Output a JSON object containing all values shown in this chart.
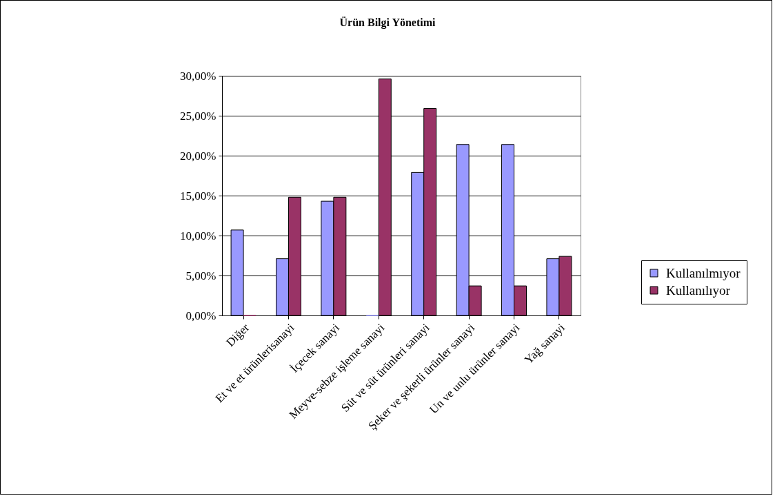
{
  "chart_data": {
    "type": "bar",
    "title": "Ürün Bilgi Yönetimi",
    "categories": [
      "Diğer",
      "Et ve et ürünlerisanayi",
      "İçecek sanayi",
      "Meyve-sebze işleme sanayi",
      "Süt ve  süt ürünleri sanayi",
      "Şeker ve şekerli ürünler sanayi",
      "Un ve unlu ürünler sanayi",
      "Yağ sanayi"
    ],
    "series": [
      {
        "name": "Kullanılmıyor",
        "color": "#9999ff",
        "values": [
          10.7,
          7.1,
          14.3,
          0,
          17.9,
          21.4,
          21.4,
          7.1
        ]
      },
      {
        "name": "Kullanılıyor",
        "color": "#993366",
        "values": [
          0,
          14.8,
          14.8,
          29.6,
          25.9,
          3.7,
          3.7,
          7.4
        ]
      }
    ],
    "ylim": [
      0,
      30
    ],
    "yticks": [
      {
        "value": 0,
        "label": "0,00%"
      },
      {
        "value": 5,
        "label": "5,00%"
      },
      {
        "value": 10,
        "label": "10,00%"
      },
      {
        "value": 15,
        "label": "15,00%"
      },
      {
        "value": 20,
        "label": "20,00%"
      },
      {
        "value": 25,
        "label": "25,00%"
      },
      {
        "value": 30,
        "label": "30,00%"
      }
    ],
    "grid": "y",
    "legend": "right"
  }
}
